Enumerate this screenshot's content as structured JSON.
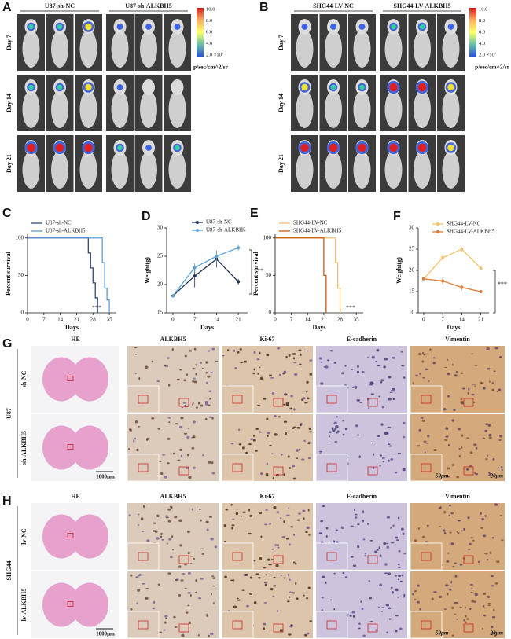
{
  "panel_a": {
    "letter": "A",
    "groups": [
      "U87-sh-NC",
      "U87-sh-ALKBH5"
    ],
    "days": [
      "Day 7",
      "Day 14",
      "Day 21"
    ],
    "colorbar_ticks": [
      "10.0",
      "8.0",
      "6.0",
      "4.0",
      "2.0 ×10⁷"
    ],
    "colorbar_unit": "p/sec/cm^2/sr"
  },
  "panel_b": {
    "letter": "B",
    "groups": [
      "SHG44-LV-NC",
      "SHG44-LV-ALKBH5"
    ],
    "days": [
      "Day 7",
      "Day 14",
      "Day 21"
    ],
    "colorbar_ticks": [
      "10.0",
      "8.0",
      "6.0",
      "4.0",
      "2.0 ×10⁷"
    ],
    "colorbar_unit": "p/sec/cm^2/sr"
  },
  "chart_data": [
    {
      "type": "line",
      "step": true,
      "panel": "C",
      "xlabel": "Days",
      "ylabel": "Percent survival",
      "xlim": [
        0,
        38
      ],
      "ylim": [
        0,
        105
      ],
      "xticks": [
        0,
        7,
        14,
        21,
        28,
        35
      ],
      "yticks": [
        0,
        50,
        100
      ],
      "annotation": "***",
      "series": [
        {
          "name": "U87-sh-NC",
          "color": "#2e4a78",
          "x": [
            0,
            26,
            27,
            28,
            29,
            30
          ],
          "values": [
            100,
            80,
            60,
            40,
            20,
            0
          ]
        },
        {
          "name": "U87-sh-ALKBH5",
          "color": "#5b9bd5",
          "x": [
            0,
            32,
            33,
            34,
            35
          ],
          "values": [
            100,
            67,
            33,
            17,
            0
          ]
        }
      ]
    },
    {
      "type": "line",
      "step": false,
      "panel": "D",
      "xlabel": "Days",
      "ylabel": "Weight(g)",
      "xlim": [
        -2,
        24
      ],
      "ylim": [
        15,
        30
      ],
      "xticks": [
        0,
        7,
        14,
        21
      ],
      "yticks": [
        15,
        20,
        25,
        30
      ],
      "annotation": "***",
      "x": [
        0,
        7,
        14,
        21
      ],
      "series": [
        {
          "name": "U87-sh-NC",
          "color": "#1f3057",
          "values": [
            18,
            21.5,
            24.5,
            20.5
          ],
          "errors": [
            0.3,
            2,
            1.5,
            0.5
          ]
        },
        {
          "name": "U87-sh-ALKBH5",
          "color": "#5ba3d9",
          "values": [
            18,
            23,
            25,
            26.5
          ],
          "errors": [
            0.3,
            0.8,
            1,
            0.5
          ]
        }
      ]
    },
    {
      "type": "line",
      "step": true,
      "panel": "E",
      "xlabel": "Days",
      "ylabel": "Percent survival",
      "xlim": [
        0,
        38
      ],
      "ylim": [
        0,
        105
      ],
      "xticks": [
        0,
        7,
        14,
        21,
        28,
        35
      ],
      "yticks": [
        0,
        50,
        100
      ],
      "annotation": "***",
      "series": [
        {
          "name": "SHG44-LV-NC",
          "color": "#f5c16c",
          "x": [
            0,
            26,
            27,
            28
          ],
          "values": [
            100,
            67,
            33,
            0
          ]
        },
        {
          "name": "SHG44-LV-ALKBH5",
          "color": "#c55a11",
          "x": [
            0,
            21,
            22
          ],
          "values": [
            100,
            50,
            0
          ]
        }
      ]
    },
    {
      "type": "line",
      "step": false,
      "panel": "F",
      "xlabel": "Days",
      "ylabel": "Weight(g)",
      "xlim": [
        -2,
        24
      ],
      "ylim": [
        10,
        30
      ],
      "xticks": [
        0,
        7,
        14,
        21
      ],
      "yticks": [
        10,
        15,
        20,
        25,
        30
      ],
      "annotation": "***",
      "x": [
        0,
        7,
        14,
        21
      ],
      "series": [
        {
          "name": "SHG44-LV-NC",
          "color": "#f5c16c",
          "values": [
            18,
            23,
            25,
            20.5
          ],
          "errors": [
            0.3,
            0.6,
            0.5,
            0.3
          ]
        },
        {
          "name": "SHG44-LV-ALKBH5",
          "color": "#e07b39",
          "values": [
            18,
            17.5,
            16,
            15
          ],
          "errors": [
            0.3,
            0.8,
            0.6,
            0.3
          ]
        }
      ]
    }
  ],
  "panel_g": {
    "letter": "G",
    "cell_line": "U87",
    "columns": [
      "HE",
      "ALKBH5",
      "Ki-67",
      "E-cadherin",
      "Vimentin"
    ],
    "rows": [
      "sh-NC",
      "sh-ALKBH5"
    ],
    "scale_he": "1000μm",
    "scale_main": "50μm",
    "scale_inset": "20μm"
  },
  "panel_h": {
    "letter": "H",
    "cell_line": "SHG44",
    "columns": [
      "HE",
      "ALKBH5",
      "Ki-67",
      "E-cadherin",
      "Vimentin"
    ],
    "rows": [
      "lv-NC",
      "lv-ALKBH5"
    ],
    "scale_he": "1000μm",
    "scale_main": "50μm",
    "scale_inset": "20μm"
  }
}
